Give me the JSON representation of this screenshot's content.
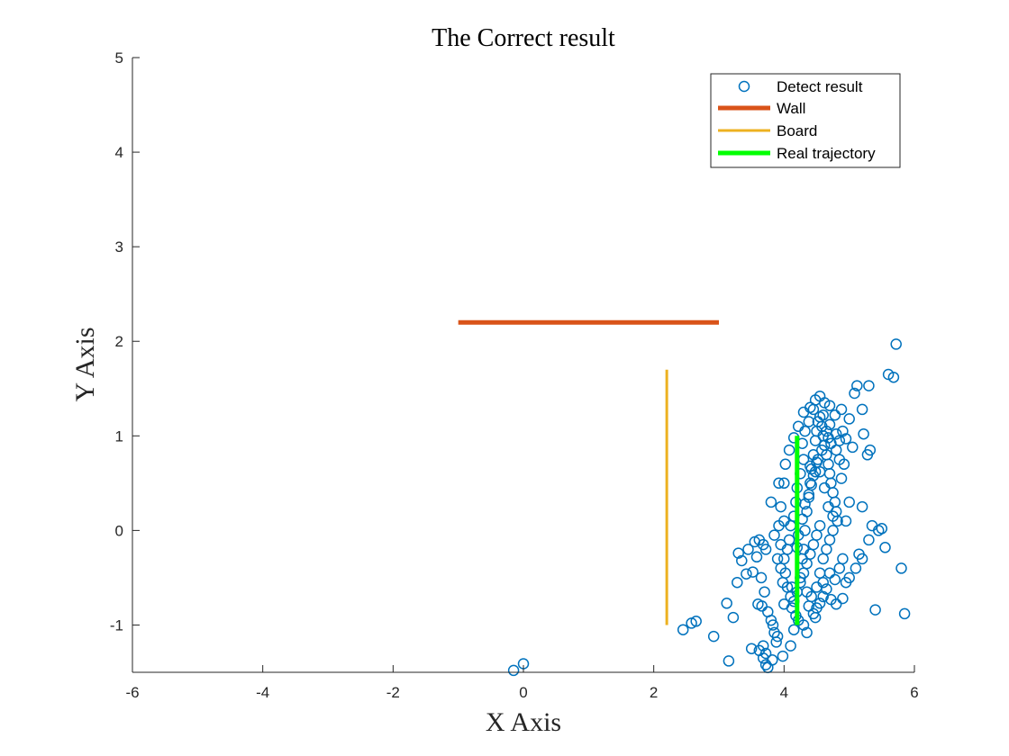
{
  "chart_data": {
    "type": "scatter",
    "title": "The Correct result",
    "xlabel": "X Axis",
    "ylabel": "Y Axis",
    "xlim": [
      -6,
      6
    ],
    "ylim": [
      -1.5,
      5
    ],
    "xticks": [
      -6,
      -4,
      -2,
      0,
      2,
      4,
      6
    ],
    "yticks": [
      -1,
      0,
      1,
      2,
      3,
      4,
      5
    ],
    "grid": false,
    "legend_position": "top-right",
    "legend": [
      {
        "label": "Detect result",
        "kind": "marker",
        "color": "#0072BD"
      },
      {
        "label": "Wall",
        "kind": "line",
        "color": "#D95319"
      },
      {
        "label": "Board",
        "kind": "line",
        "color": "#EDB120"
      },
      {
        "label": "Real trajectory",
        "kind": "line",
        "color": "#00FF00"
      }
    ],
    "lines": [
      {
        "name": "Wall",
        "color": "#D95319",
        "x": [
          -1,
          3
        ],
        "y": [
          2.2,
          2.2
        ]
      },
      {
        "name": "Board",
        "color": "#EDB120",
        "x": [
          2.2,
          2.2
        ],
        "y": [
          -1,
          1.7
        ]
      },
      {
        "name": "Real trajectory",
        "color": "#00FF00",
        "x": [
          4.2,
          4.2
        ],
        "y": [
          -1,
          1
        ]
      }
    ],
    "series": [
      {
        "name": "Detect result",
        "color": "#0072BD",
        "points": [
          [
            -0.15,
            -1.48
          ],
          [
            0.0,
            -1.41
          ],
          [
            2.45,
            -1.05
          ],
          [
            2.58,
            -0.98
          ],
          [
            2.65,
            -0.96
          ],
          [
            2.92,
            -1.12
          ],
          [
            3.15,
            -1.38
          ],
          [
            3.12,
            -0.77
          ],
          [
            3.22,
            -0.92
          ],
          [
            3.28,
            -0.55
          ],
          [
            3.35,
            -0.32
          ],
          [
            3.3,
            -0.24
          ],
          [
            3.45,
            -0.2
          ],
          [
            3.42,
            -0.46
          ],
          [
            3.52,
            -0.44
          ],
          [
            3.55,
            -0.12
          ],
          [
            3.62,
            -0.1
          ],
          [
            3.68,
            -0.15
          ],
          [
            3.72,
            -0.2
          ],
          [
            3.58,
            -0.28
          ],
          [
            3.65,
            -0.5
          ],
          [
            3.7,
            -0.65
          ],
          [
            3.6,
            -0.78
          ],
          [
            3.66,
            -0.8
          ],
          [
            3.75,
            -0.86
          ],
          [
            3.8,
            -0.95
          ],
          [
            3.83,
            -1.0
          ],
          [
            3.85,
            -1.08
          ],
          [
            3.9,
            -1.12
          ],
          [
            3.88,
            -1.18
          ],
          [
            3.5,
            -1.25
          ],
          [
            3.62,
            -1.27
          ],
          [
            3.68,
            -1.22
          ],
          [
            3.72,
            -1.3
          ],
          [
            3.68,
            -1.35
          ],
          [
            3.72,
            -1.42
          ],
          [
            3.75,
            -1.45
          ],
          [
            3.82,
            -1.37
          ],
          [
            3.98,
            -1.33
          ],
          [
            4.1,
            -1.22
          ],
          [
            4.15,
            -1.05
          ],
          [
            4.3,
            -1.0
          ],
          [
            4.35,
            -1.08
          ],
          [
            4.45,
            -0.88
          ],
          [
            4.48,
            -0.92
          ],
          [
            4.55,
            -0.77
          ],
          [
            4.6,
            -0.7
          ],
          [
            4.72,
            -0.73
          ],
          [
            4.8,
            -0.78
          ],
          [
            4.9,
            -0.72
          ],
          [
            4.95,
            -0.55
          ],
          [
            5.0,
            -0.5
          ],
          [
            5.1,
            -0.4
          ],
          [
            5.2,
            -0.3
          ],
          [
            5.15,
            -0.25
          ],
          [
            5.3,
            -0.1
          ],
          [
            5.45,
            0.0
          ],
          [
            5.55,
            -0.18
          ],
          [
            5.8,
            -0.4
          ],
          [
            5.85,
            -0.88
          ],
          [
            5.4,
            -0.84
          ],
          [
            5.35,
            0.05
          ],
          [
            5.5,
            0.02
          ],
          [
            5.2,
            0.25
          ],
          [
            5.28,
            0.8
          ],
          [
            5.32,
            0.85
          ],
          [
            5.05,
            0.88
          ],
          [
            4.95,
            0.97
          ],
          [
            5.0,
            1.18
          ],
          [
            5.22,
            1.02
          ],
          [
            5.2,
            1.28
          ],
          [
            5.08,
            1.45
          ],
          [
            5.12,
            1.53
          ],
          [
            5.3,
            1.53
          ],
          [
            5.6,
            1.65
          ],
          [
            5.68,
            1.62
          ],
          [
            5.72,
            1.97
          ],
          [
            4.88,
            1.28
          ],
          [
            4.78,
            1.22
          ],
          [
            4.7,
            1.32
          ],
          [
            4.62,
            1.35
          ],
          [
            4.55,
            1.42
          ],
          [
            4.48,
            1.38
          ],
          [
            4.4,
            1.3
          ],
          [
            4.3,
            1.25
          ],
          [
            4.22,
            1.1
          ],
          [
            4.15,
            0.98
          ],
          [
            4.08,
            0.85
          ],
          [
            4.02,
            0.7
          ],
          [
            4.0,
            0.5
          ],
          [
            3.92,
            0.5
          ],
          [
            3.8,
            0.3
          ],
          [
            3.95,
            0.25
          ],
          [
            4.0,
            0.1
          ],
          [
            3.92,
            0.05
          ],
          [
            3.85,
            -0.05
          ],
          [
            3.9,
            -0.3
          ],
          [
            3.95,
            -0.4
          ],
          [
            4.02,
            -0.45
          ],
          [
            3.98,
            -0.55
          ],
          [
            4.05,
            -0.6
          ],
          [
            4.1,
            -0.7
          ],
          [
            4.0,
            -0.78
          ],
          [
            4.12,
            -0.82
          ],
          [
            4.18,
            -0.9
          ],
          [
            4.22,
            -0.95
          ],
          [
            4.25,
            -0.5
          ],
          [
            4.28,
            -0.3
          ],
          [
            4.3,
            -0.2
          ],
          [
            4.32,
            0.0
          ],
          [
            4.35,
            0.2
          ],
          [
            4.38,
            0.35
          ],
          [
            4.4,
            0.5
          ],
          [
            4.42,
            0.65
          ],
          [
            4.45,
            0.8
          ],
          [
            4.48,
            0.95
          ],
          [
            4.5,
            1.05
          ],
          [
            4.52,
            1.15
          ],
          [
            4.55,
            1.2
          ],
          [
            4.58,
            1.1
          ],
          [
            4.6,
            1.0
          ],
          [
            4.62,
            0.9
          ],
          [
            4.65,
            0.8
          ],
          [
            4.68,
            0.7
          ],
          [
            4.7,
            0.6
          ],
          [
            4.72,
            0.5
          ],
          [
            4.75,
            0.4
          ],
          [
            4.78,
            0.3
          ],
          [
            4.8,
            0.2
          ],
          [
            4.82,
            0.1
          ],
          [
            4.55,
            0.05
          ],
          [
            4.5,
            -0.05
          ],
          [
            4.45,
            -0.15
          ],
          [
            4.4,
            -0.25
          ],
          [
            4.35,
            -0.35
          ],
          [
            4.3,
            -0.45
          ],
          [
            4.25,
            -0.55
          ],
          [
            4.2,
            -0.65
          ],
          [
            4.15,
            -0.75
          ],
          [
            4.12,
            -0.6
          ],
          [
            4.6,
            -0.3
          ],
          [
            4.65,
            -0.2
          ],
          [
            4.7,
            -0.1
          ],
          [
            4.75,
            0.0
          ],
          [
            4.85,
            -0.4
          ],
          [
            4.9,
            -0.3
          ],
          [
            4.95,
            0.1
          ],
          [
            5.0,
            0.3
          ],
          [
            4.88,
            0.55
          ],
          [
            4.92,
            0.7
          ],
          [
            4.85,
            0.75
          ],
          [
            4.8,
            0.85
          ],
          [
            4.72,
            0.92
          ],
          [
            4.65,
            1.05
          ],
          [
            4.7,
            1.12
          ],
          [
            4.6,
            1.22
          ],
          [
            4.45,
            1.28
          ],
          [
            4.38,
            1.15
          ],
          [
            4.32,
            1.05
          ],
          [
            4.28,
            0.92
          ],
          [
            4.3,
            0.75
          ],
          [
            4.25,
            0.6
          ],
          [
            4.2,
            0.45
          ],
          [
            4.18,
            0.3
          ],
          [
            4.15,
            0.15
          ],
          [
            4.1,
            0.05
          ],
          [
            4.08,
            -0.1
          ],
          [
            4.05,
            -0.2
          ],
          [
            4.0,
            -0.3
          ],
          [
            3.95,
            -0.15
          ],
          [
            4.55,
            0.62
          ],
          [
            4.5,
            0.72
          ],
          [
            4.45,
            0.58
          ],
          [
            4.4,
            0.68
          ],
          [
            4.62,
            0.45
          ],
          [
            4.68,
            0.25
          ],
          [
            4.75,
            0.15
          ],
          [
            4.55,
            -0.45
          ],
          [
            4.6,
            -0.55
          ],
          [
            4.5,
            -0.6
          ],
          [
            4.42,
            -0.7
          ],
          [
            4.38,
            -0.8
          ],
          [
            4.5,
            -0.82
          ],
          [
            4.35,
            -0.65
          ],
          [
            4.65,
            -0.62
          ],
          [
            4.78,
            -0.52
          ],
          [
            4.7,
            -0.45
          ],
          [
            4.85,
            0.95
          ],
          [
            4.9,
            1.05
          ],
          [
            4.8,
            1.02
          ],
          [
            4.68,
            0.98
          ],
          [
            4.58,
            0.85
          ],
          [
            4.52,
            0.75
          ],
          [
            4.48,
            0.62
          ],
          [
            4.42,
            0.48
          ],
          [
            4.38,
            0.38
          ],
          [
            4.32,
            0.28
          ],
          [
            4.28,
            0.12
          ],
          [
            4.22,
            -0.05
          ],
          [
            4.2,
            -0.18
          ]
        ]
      }
    ]
  }
}
